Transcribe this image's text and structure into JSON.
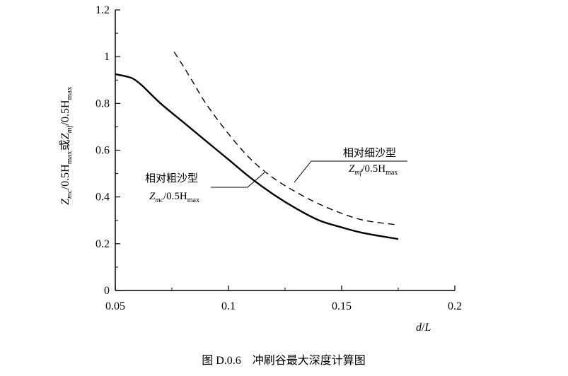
{
  "chart_data": {
    "type": "line",
    "xlabel": "d/L",
    "ylabel": "Z_mc/0.5H_max或Z_mf/0.5H_max",
    "xlim": [
      0.05,
      0.2
    ],
    "ylim": [
      0,
      1.2
    ],
    "xticks": [
      0.05,
      0.1,
      0.15,
      0.2
    ],
    "xtick_labels": [
      "0.05",
      "0.1",
      "0.15",
      "0.2"
    ],
    "yticks": [
      0,
      0.2,
      0.4,
      0.6,
      0.8,
      1,
      1.2
    ],
    "ytick_labels": [
      "0",
      "0.2",
      "0.4",
      "0.6",
      "0.8",
      "1",
      "1.2"
    ],
    "grid": false,
    "series": [
      {
        "name": "相对粗沙型 Z_mc/0.5H_max",
        "style": "solid",
        "x": [
          0.05,
          0.055,
          0.058,
          0.062,
          0.07,
          0.08,
          0.09,
          0.1,
          0.11,
          0.12,
          0.13,
          0.14,
          0.15,
          0.16,
          0.175
        ],
        "y": [
          0.925,
          0.915,
          0.905,
          0.875,
          0.8,
          0.72,
          0.64,
          0.56,
          0.48,
          0.41,
          0.35,
          0.3,
          0.27,
          0.245,
          0.22
        ]
      },
      {
        "name": "相对细沙型 Z_mf/0.5H_max",
        "style": "dashed",
        "x": [
          0.076,
          0.08,
          0.085,
          0.09,
          0.1,
          0.11,
          0.12,
          0.13,
          0.14,
          0.15,
          0.16,
          0.175
        ],
        "y": [
          1.02,
          0.96,
          0.88,
          0.8,
          0.67,
          0.56,
          0.48,
          0.42,
          0.37,
          0.33,
          0.3,
          0.28
        ]
      }
    ],
    "annotations": {
      "coarse": {
        "label": "相对粗沙型",
        "formula_main": "Z",
        "formula_sub": "mc",
        "formula_mid": "/0.5H",
        "formula_sub2": "max"
      },
      "fine": {
        "label": "相对细沙型",
        "formula_main": "Z",
        "formula_sub": "mf",
        "formula_mid": "/0.5H",
        "formula_sub2": "max"
      }
    },
    "ylabel_parts": {
      "z1": "Z",
      "s1": "mc",
      "m1": "/0.5H",
      "s2": "max",
      "mid": "或",
      "z2": "Z",
      "s3": "mf",
      "m2": "/0.5H",
      "s4": "max"
    },
    "xlabel_parts": {
      "a": "d",
      "b": "/",
      "c": "L"
    }
  },
  "caption": "图 D.0.6　冲刷谷最大深度计算图"
}
